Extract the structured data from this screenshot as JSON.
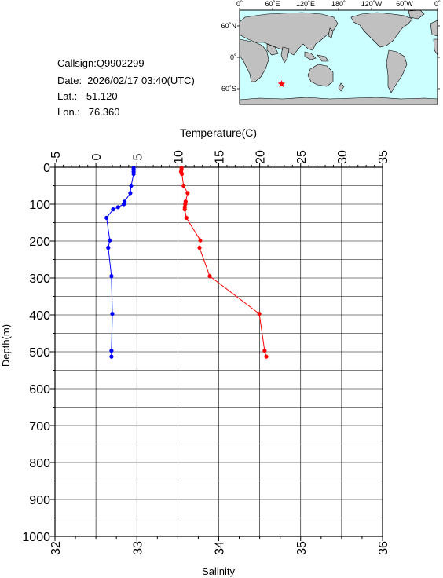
{
  "station": {
    "callsign": "Callsign:Q9902299",
    "date": "Date:  2026/02/17 03:40(UTC)",
    "lat": "Lat.:  -51.120",
    "lon": "Lon.:   76.360"
  },
  "map": {
    "lon_labels": [
      "0˚",
      "60˚E",
      "120˚E",
      "180˚",
      "120˚W",
      "60˚W",
      "0˚"
    ],
    "lat_labels": [
      "60˚N",
      "0˚",
      "60˚S"
    ],
    "marker_lat": -51.12,
    "marker_lon": 76.36,
    "colors": {
      "ocean": "#ccffff",
      "land": "#c0c0c0",
      "marker": "#ff0000"
    }
  },
  "chart_data": {
    "type": "line",
    "title": "",
    "top_axis_label": "Temperature(C)",
    "bottom_axis_label": "Salinity",
    "y_axis_label": "Depth(m)",
    "temperature_range": [
      -5,
      35
    ],
    "salinity_range": [
      32,
      36
    ],
    "depth_range": [
      0,
      1000
    ],
    "temperature_ticks": [
      "-5",
      "0",
      "5",
      "10",
      "15",
      "20",
      "25",
      "30",
      "35"
    ],
    "salinity_ticks": [
      "32",
      "33",
      "34",
      "35",
      "36"
    ],
    "depth_ticks": [
      "0",
      "100",
      "200",
      "300",
      "400",
      "500",
      "600",
      "700",
      "800",
      "900",
      "1000"
    ],
    "grid": true,
    "series": [
      {
        "name": "",
        "quantity": "salinity",
        "color": "#0000ff",
        "points": [
          [
            32.96,
            2
          ],
          [
            32.96,
            6
          ],
          [
            32.96,
            12
          ],
          [
            32.96,
            18
          ],
          [
            32.93,
            50
          ],
          [
            32.92,
            70
          ],
          [
            32.85,
            93
          ],
          [
            32.84,
            100
          ],
          [
            32.77,
            108
          ],
          [
            32.71,
            114
          ],
          [
            32.63,
            137
          ],
          [
            32.67,
            198
          ],
          [
            32.65,
            218
          ],
          [
            32.69,
            295
          ],
          [
            32.7,
            397
          ],
          [
            32.69,
            497
          ],
          [
            32.69,
            513
          ]
        ]
      },
      {
        "name": "",
        "quantity": "temperature",
        "color": "#ff0000",
        "points": [
          [
            10.45,
            2
          ],
          [
            10.45,
            6
          ],
          [
            10.4,
            12
          ],
          [
            10.5,
            18
          ],
          [
            10.7,
            50
          ],
          [
            11.2,
            70
          ],
          [
            10.95,
            93
          ],
          [
            10.9,
            100
          ],
          [
            10.85,
            108
          ],
          [
            10.85,
            114
          ],
          [
            11.05,
            137
          ],
          [
            12.75,
            198
          ],
          [
            12.65,
            218
          ],
          [
            13.9,
            295
          ],
          [
            19.95,
            397
          ],
          [
            20.6,
            497
          ],
          [
            20.8,
            513
          ]
        ]
      }
    ]
  }
}
